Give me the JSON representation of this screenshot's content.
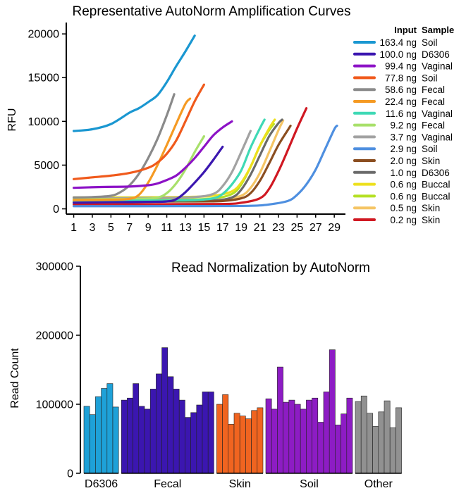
{
  "chart_data": [
    {
      "type": "line",
      "title": "Representative AutoNorm Amplification Curves",
      "xlabel": "",
      "ylabel": "RFU",
      "xlim": [
        0.2,
        30.2
      ],
      "ylim": [
        -600,
        21300
      ],
      "xticks": [
        "1",
        "3",
        "5",
        "7",
        "9",
        "11",
        "13",
        "15",
        "17",
        "19",
        "21",
        "23",
        "25",
        "27",
        "29"
      ],
      "yticks": [
        "0",
        "5000",
        "10000",
        "15000",
        "20000"
      ],
      "legend": {
        "position": "right",
        "header_input": "Input",
        "header_sample": "Sample"
      },
      "series": [
        {
          "input": "163.4 ng",
          "sample": "Soil",
          "color": "#1a97d1",
          "points": [
            [
              1,
              8900
            ],
            [
              3,
              9100
            ],
            [
              5,
              9700
            ],
            [
              7,
              11000
            ],
            [
              8,
              11500
            ],
            [
              9,
              12200
            ],
            [
              10,
              13000
            ],
            [
              11,
              14500
            ],
            [
              12,
              16300
            ],
            [
              13,
              18000
            ],
            [
              14,
              19800
            ]
          ]
        },
        {
          "input": "100.0 ng",
          "sample": "D6306",
          "color": "#3b17b0",
          "points": [
            [
              1,
              700
            ],
            [
              5,
              750
            ],
            [
              9,
              800
            ],
            [
              11,
              850
            ],
            [
              12,
              1100
            ],
            [
              13,
              1900
            ],
            [
              14,
              3000
            ],
            [
              15,
              4200
            ],
            [
              16,
              5600
            ],
            [
              17,
              7100
            ]
          ]
        },
        {
          "input": "99.4 ng",
          "sample": "Vaginal",
          "color": "#8c12c6",
          "points": [
            [
              1,
              2400
            ],
            [
              4,
              2500
            ],
            [
              7,
              2550
            ],
            [
              9,
              2700
            ],
            [
              10,
              2900
            ],
            [
              11,
              3300
            ],
            [
              12,
              3800
            ],
            [
              13,
              4700
            ],
            [
              14,
              5800
            ],
            [
              15,
              7100
            ],
            [
              16,
              8400
            ],
            [
              17,
              9300
            ],
            [
              18,
              10000
            ]
          ]
        },
        {
          "input": "77.8 ng",
          "sample": "Soil",
          "color": "#f05a1c",
          "points": [
            [
              1,
              3400
            ],
            [
              3,
              3600
            ],
            [
              5,
              3800
            ],
            [
              7,
              4100
            ],
            [
              9,
              4700
            ],
            [
              10,
              5300
            ],
            [
              11,
              6300
            ],
            [
              12,
              7800
            ],
            [
              13,
              10000
            ],
            [
              14,
              12300
            ],
            [
              15,
              14200
            ]
          ]
        },
        {
          "input": "58.6 ng",
          "sample": "Fecal",
          "color": "#8a8a8a",
          "points": [
            [
              1,
              1300
            ],
            [
              3,
              1350
            ],
            [
              5,
              1500
            ],
            [
              6,
              1900
            ],
            [
              7,
              2700
            ],
            [
              8,
              4000
            ],
            [
              9,
              5800
            ],
            [
              10,
              8000
            ],
            [
              11,
              10700
            ],
            [
              11.8,
              13100
            ]
          ]
        },
        {
          "input": "22.4 ng",
          "sample": "Fecal",
          "color": "#f59a23",
          "points": [
            [
              1,
              1000
            ],
            [
              5,
              1050
            ],
            [
              7,
              1150
            ],
            [
              8,
              1600
            ],
            [
              9,
              3000
            ],
            [
              10,
              5000
            ],
            [
              11,
              7300
            ],
            [
              12,
              9700
            ],
            [
              13,
              12000
            ],
            [
              13.5,
              12600
            ]
          ]
        },
        {
          "input": "11.6 ng",
          "sample": "Vaginal",
          "color": "#3fd9b5",
          "points": [
            [
              1,
              900
            ],
            [
              10,
              950
            ],
            [
              14,
              1000
            ],
            [
              16,
              1200
            ],
            [
              17,
              1700
            ],
            [
              18,
              2800
            ],
            [
              19,
              4400
            ],
            [
              20,
              7000
            ],
            [
              21,
              9200
            ],
            [
              21.5,
              10200
            ]
          ]
        },
        {
          "input": "9.2 ng",
          "sample": "Fecal",
          "color": "#a8e06b",
          "points": [
            [
              1,
              1100
            ],
            [
              8,
              1150
            ],
            [
              10,
              1300
            ],
            [
              11,
              1800
            ],
            [
              12,
              2900
            ],
            [
              13,
              4500
            ],
            [
              14,
              6500
            ],
            [
              15,
              8300
            ]
          ]
        },
        {
          "input": "3.7 ng",
          "sample": "Vaginal",
          "color": "#a2a2a2",
          "points": [
            [
              1,
              1200
            ],
            [
              10,
              1250
            ],
            [
              14,
              1350
            ],
            [
              16,
              1700
            ],
            [
              17,
              2600
            ],
            [
              18,
              4200
            ],
            [
              19,
              6500
            ],
            [
              20,
              8900
            ]
          ]
        },
        {
          "input": "2.9 ng",
          "sample": "Soil",
          "color": "#4e8fe0",
          "points": [
            [
              1,
              300
            ],
            [
              15,
              320
            ],
            [
              20,
              350
            ],
            [
              22,
              500
            ],
            [
              24,
              900
            ],
            [
              25,
              1600
            ],
            [
              26,
              2800
            ],
            [
              27,
              4500
            ],
            [
              28,
              6800
            ],
            [
              29,
              9100
            ],
            [
              29.3,
              9500
            ]
          ]
        },
        {
          "input": "2.0 ng",
          "sample": "Skin",
          "color": "#8b4e20",
          "points": [
            [
              1,
              800
            ],
            [
              14,
              850
            ],
            [
              17,
              900
            ],
            [
              19,
              1200
            ],
            [
              20,
              1800
            ],
            [
              21,
              3200
            ],
            [
              22,
              5200
            ],
            [
              23,
              7300
            ],
            [
              24,
              9000
            ],
            [
              24.3,
              9500
            ]
          ]
        },
        {
          "input": "1.0 ng",
          "sample": "D6306",
          "color": "#6a6a6a",
          "points": [
            [
              1,
              850
            ],
            [
              12,
              880
            ],
            [
              16,
              950
            ],
            [
              18,
              1300
            ],
            [
              19,
              2200
            ],
            [
              20,
              3900
            ],
            [
              21,
              6100
            ],
            [
              22,
              8300
            ],
            [
              23,
              9800
            ],
            [
              23.4,
              10200
            ]
          ]
        },
        {
          "input": "0.6 ng",
          "sample": "Buccal",
          "color": "#ede01d",
          "points": [
            [
              1,
              1300
            ],
            [
              12,
              1350
            ],
            [
              16,
              1500
            ],
            [
              18,
              2000
            ],
            [
              19,
              3000
            ],
            [
              20,
              4800
            ],
            [
              21,
              7200
            ],
            [
              22,
              9200
            ],
            [
              22.6,
              10200
            ]
          ]
        },
        {
          "input": "0.6 ng",
          "sample": "Buccal",
          "color": "#b5e025",
          "points": [
            [
              1,
              1000
            ],
            [
              12,
              1050
            ],
            [
              16,
              1200
            ],
            [
              18,
              1700
            ],
            [
              19,
              2800
            ],
            [
              20,
              4800
            ],
            [
              21,
              7200
            ],
            [
              22,
              9000
            ],
            [
              22.5,
              9700
            ]
          ]
        },
        {
          "input": "0.5 ng",
          "sample": "Skin",
          "color": "#f5c565",
          "points": [
            [
              1,
              900
            ],
            [
              14,
              950
            ],
            [
              17,
              1050
            ],
            [
              19,
              1500
            ],
            [
              20,
              2400
            ],
            [
              21,
              4100
            ],
            [
              22,
              6500
            ],
            [
              23,
              9000
            ],
            [
              23.5,
              10100
            ]
          ]
        },
        {
          "input": "0.2 ng",
          "sample": "Skin",
          "color": "#d01822",
          "points": [
            [
              1,
              500
            ],
            [
              16,
              550
            ],
            [
              19,
              700
            ],
            [
              21,
              1200
            ],
            [
              22,
              2300
            ],
            [
              23,
              4300
            ],
            [
              24,
              6700
            ],
            [
              25,
              9200
            ],
            [
              26,
              11500
            ]
          ]
        }
      ]
    },
    {
      "type": "bar",
      "title": "Read Normalization by AutoNorm",
      "xlabel": "",
      "ylabel": "Read Count",
      "ylim": [
        0,
        300000
      ],
      "yticks": [
        "0",
        "100000",
        "200000",
        "300000"
      ],
      "groups": [
        {
          "name": "D6306",
          "color": "#1ea1d8",
          "values": [
            97000,
            85000,
            111000,
            123000,
            130000,
            96000
          ]
        },
        {
          "name": "Fecal",
          "color": "#3b16b0",
          "values": [
            106000,
            109000,
            130000,
            97000,
            93000,
            122000,
            144000,
            182000,
            140000,
            122000,
            106000,
            81000,
            88000,
            99000,
            118000,
            118000
          ]
        },
        {
          "name": "Skin",
          "color": "#f06420",
          "values": [
            100000,
            114000,
            71000,
            87000,
            83000,
            79000,
            91000,
            95000
          ]
        },
        {
          "name": "Soil",
          "color": "#8d1cc4",
          "values": [
            108000,
            93000,
            154000,
            103000,
            106000,
            100000,
            93000,
            106000,
            109000,
            74000,
            118000,
            179000,
            70000,
            86000,
            109000
          ]
        },
        {
          "name": "Other",
          "color": "#919191",
          "values": [
            104000,
            112000,
            87000,
            68000,
            89000,
            105000,
            66000,
            95000
          ]
        }
      ]
    }
  ]
}
